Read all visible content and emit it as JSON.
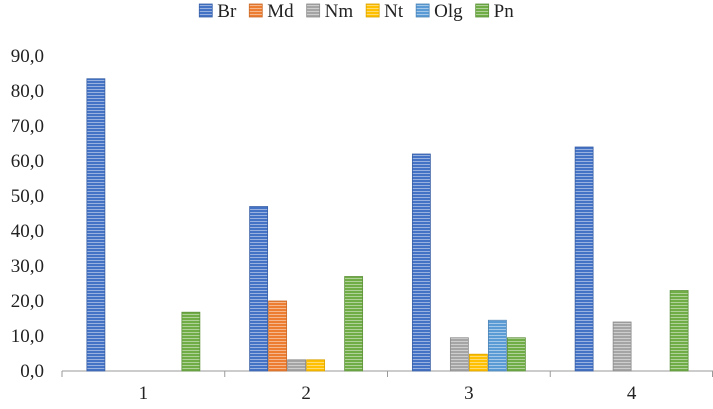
{
  "chart_data": {
    "type": "bar",
    "title": "",
    "xlabel": "",
    "ylabel": "",
    "categories": [
      "1",
      "2",
      "3",
      "4"
    ],
    "ylim": [
      0,
      90
    ],
    "yticks": [
      0,
      10,
      20,
      30,
      40,
      50,
      60,
      70,
      80,
      90
    ],
    "ytick_labels": [
      "0,0",
      "10,0",
      "20,0",
      "30,0",
      "40,0",
      "50,0",
      "60,0",
      "70,0",
      "80,0",
      "90,0"
    ],
    "grid": false,
    "legend_position": "top",
    "series": [
      {
        "name": "Br",
        "color": "#4472C4",
        "values": [
          83.5,
          47.0,
          62.0,
          64.0
        ]
      },
      {
        "name": "Md",
        "color": "#ED7D31",
        "values": [
          0,
          20.0,
          0,
          0
        ]
      },
      {
        "name": "Nm",
        "color": "#A5A5A5",
        "values": [
          0,
          3.2,
          9.5,
          14.0
        ]
      },
      {
        "name": "Nt",
        "color": "#FFC000",
        "values": [
          0,
          3.2,
          4.8,
          0
        ]
      },
      {
        "name": "Olg",
        "color": "#5B9BD5",
        "values": [
          0,
          0,
          14.5,
          0
        ]
      },
      {
        "name": "Pn",
        "color": "#70AD47",
        "values": [
          16.8,
          27.0,
          9.5,
          23.0
        ]
      }
    ]
  }
}
